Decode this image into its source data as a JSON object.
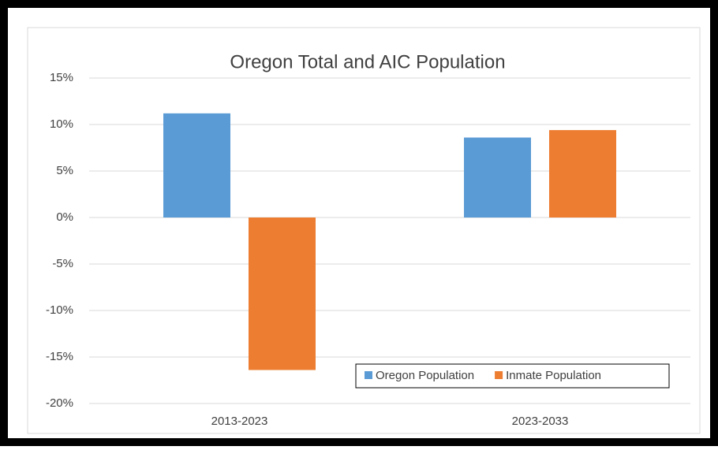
{
  "chart_data": {
    "type": "bar",
    "title": "Oregon Total and AIC Population",
    "categories": [
      "2013-2023",
      "2023-2033"
    ],
    "series": [
      {
        "name": "Oregon Population",
        "color": "#5b9bd5",
        "values": [
          11.2,
          8.6
        ]
      },
      {
        "name": "Inmate Population",
        "color": "#ed7d31",
        "values": [
          -16.4,
          9.4
        ]
      }
    ],
    "ylim": [
      -20,
      15
    ],
    "yticks": [
      {
        "value": -20,
        "label": "-20%"
      },
      {
        "value": -15,
        "label": "-15%"
      },
      {
        "value": -10,
        "label": "-10%"
      },
      {
        "value": -5,
        "label": "-5%"
      },
      {
        "value": 0,
        "label": "0%"
      },
      {
        "value": 5,
        "label": "5%"
      },
      {
        "value": 10,
        "label": "10%"
      },
      {
        "value": 15,
        "label": "15%"
      }
    ],
    "grid": true,
    "legend": "lower-right"
  }
}
